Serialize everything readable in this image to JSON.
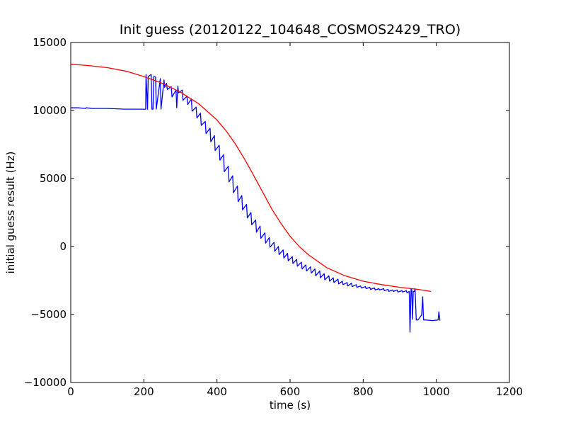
{
  "chart_data": {
    "type": "line",
    "title": "Init guess (20120122_104648_COSMOS2429_TRO)",
    "xlabel": "time (s)",
    "ylabel": "initial guess result (Hz)",
    "xlim": [
      0,
      1200
    ],
    "ylim": [
      -10000,
      15000
    ],
    "xticks": [
      0,
      200,
      400,
      600,
      800,
      1000,
      1200
    ],
    "yticks": [
      -10000,
      -5000,
      0,
      5000,
      10000,
      15000
    ],
    "xtick_labels": [
      "0",
      "200",
      "400",
      "600",
      "800",
      "1000",
      "1200"
    ],
    "ytick_labels": [
      "−10000",
      "−5000",
      "0",
      "5000",
      "10000",
      "15000"
    ],
    "grid": false,
    "legend": "none",
    "series": [
      {
        "color": "#0000ff",
        "x": [
          0,
          20,
          40,
          42,
          60,
          100,
          150,
          200,
          205,
          206,
          210,
          212,
          220,
          222,
          225,
          227,
          232,
          234,
          245,
          247,
          255,
          257,
          262,
          264,
          275,
          277,
          288,
          290,
          293,
          295,
          305,
          307,
          318,
          320,
          330,
          332,
          343,
          345,
          355,
          357,
          368,
          370,
          381,
          383,
          393,
          395,
          406,
          408,
          418,
          420,
          431,
          433,
          443,
          445,
          456,
          458,
          468,
          470,
          481,
          483,
          493,
          495,
          506,
          508,
          518,
          520,
          531,
          533,
          543,
          545,
          556,
          558,
          568,
          570,
          581,
          583,
          593,
          595,
          606,
          608,
          618,
          620,
          631,
          633,
          643,
          645,
          656,
          658,
          668,
          670,
          681,
          683,
          693,
          695,
          706,
          708,
          718,
          720,
          731,
          733,
          743,
          745,
          756,
          758,
          768,
          770,
          781,
          783,
          793,
          795,
          806,
          808,
          818,
          820,
          831,
          833,
          843,
          845,
          856,
          858,
          868,
          870,
          881,
          883,
          893,
          895,
          906,
          908,
          918,
          920,
          926,
          928,
          931,
          933,
          935,
          937,
          940,
          942,
          945,
          950,
          958,
          960,
          963,
          965,
          970,
          990,
          1005,
          1007,
          1010
        ],
        "y": [
          10200,
          10200,
          10150,
          10200,
          10150,
          10150,
          10100,
          10100,
          10100,
          12650,
          10100,
          12500,
          12650,
          10100,
          10100,
          12500,
          12450,
          10100,
          12350,
          10100,
          12250,
          11700,
          12000,
          11550,
          11750,
          11000,
          11500,
          10200,
          11800,
          11300,
          11500,
          10750,
          11050,
          10450,
          10850,
          9950,
          10250,
          9450,
          9800,
          8900,
          9200,
          8300,
          8700,
          7700,
          8150,
          7050,
          7450,
          6350,
          6750,
          5500,
          5900,
          4750,
          5200,
          3950,
          4450,
          3300,
          3750,
          2700,
          3100,
          2100,
          2500,
          1600,
          1950,
          1050,
          1500,
          600,
          1000,
          250,
          650,
          -50,
          300,
          -350,
          0,
          -600,
          -250,
          -850,
          -500,
          -1050,
          -750,
          -1250,
          -950,
          -1450,
          -1150,
          -1650,
          -1350,
          -1800,
          -1500,
          -1950,
          -1650,
          -2150,
          -1800,
          -2300,
          -2000,
          -2450,
          -2150,
          -2550,
          -2300,
          -2650,
          -2400,
          -2750,
          -2550,
          -2800,
          -2650,
          -2900,
          -2700,
          -2950,
          -2800,
          -3000,
          -2900,
          -3050,
          -2950,
          -3100,
          -3000,
          -3150,
          -3050,
          -3200,
          -3100,
          -3200,
          -3100,
          -3250,
          -3150,
          -3300,
          -3200,
          -3300,
          -3200,
          -3350,
          -3250,
          -3350,
          -3250,
          -3400,
          -3300,
          -6300,
          -3100,
          -3200,
          -5350,
          -3300,
          -3300,
          -3100,
          -5400,
          -5400,
          -5100,
          -5000,
          -3700,
          -5400,
          -5400,
          -5450,
          -5400,
          -4800,
          -5450
        ]
      },
      {
        "color": "#ff0000",
        "x": [
          0,
          50,
          100,
          150,
          200,
          250,
          300,
          350,
          400,
          425,
          450,
          475,
          500,
          525,
          550,
          575,
          600,
          625,
          650,
          700,
          750,
          800,
          850,
          900,
          950,
          985
        ],
        "y": [
          13400,
          13300,
          13150,
          12900,
          12500,
          12000,
          11350,
          10500,
          9300,
          8500,
          7550,
          6450,
          5250,
          4000,
          2750,
          1700,
          750,
          0,
          -600,
          -1550,
          -2150,
          -2550,
          -2800,
          -3000,
          -3150,
          -3300
        ]
      }
    ]
  }
}
